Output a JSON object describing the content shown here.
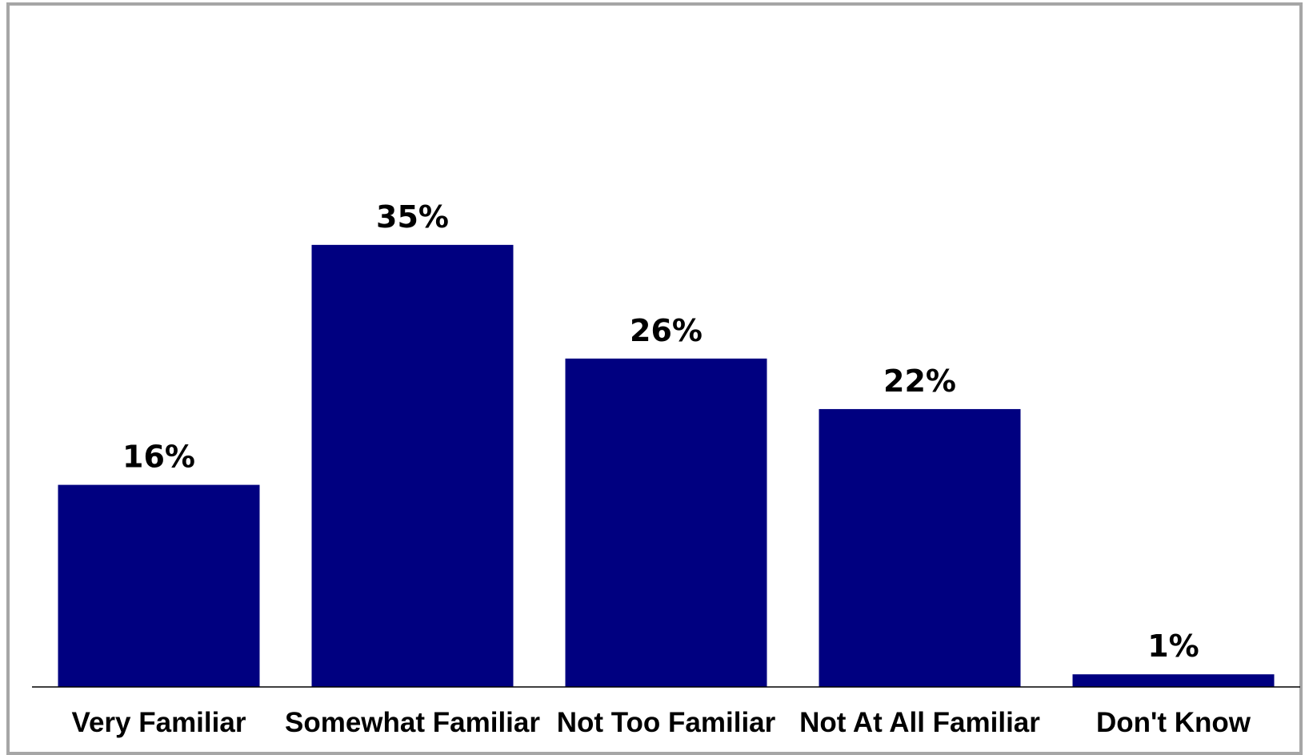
{
  "chart_data": {
    "type": "bar",
    "title": "",
    "xlabel": "",
    "ylabel": "",
    "categories": [
      "Very Familiar",
      "Somewhat Familiar",
      "Not Too Familiar",
      "Not At All Familiar",
      "Don't Know"
    ],
    "values": [
      16,
      35,
      26,
      22,
      1
    ],
    "value_labels": [
      "16%",
      "35%",
      "26%",
      "22%",
      "1%"
    ],
    "ylim": [
      0,
      49
    ],
    "grid": false,
    "legend": "none",
    "bar_color": "#000080",
    "frame_color": "#a6a6a6"
  }
}
